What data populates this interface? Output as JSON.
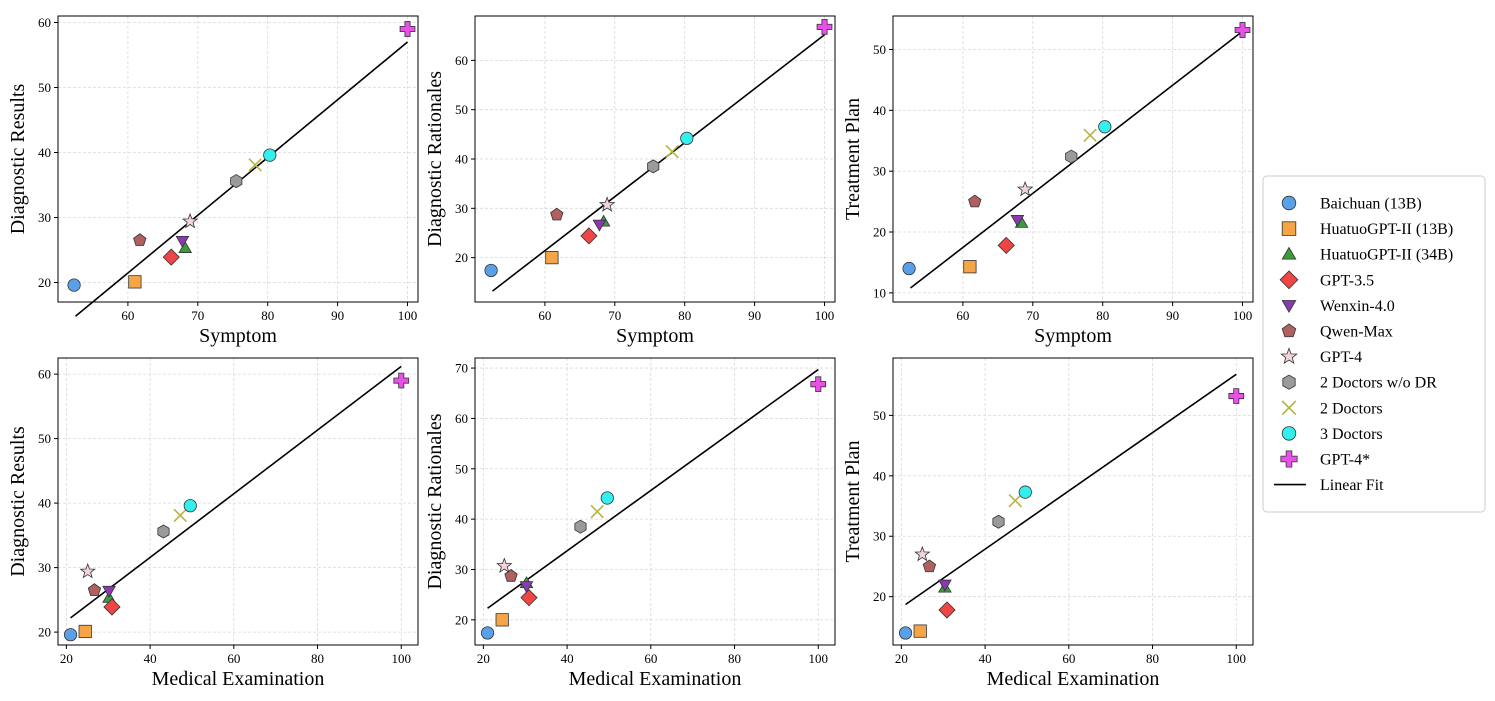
{
  "models": [
    {
      "name": "Baichuan (13B)",
      "marker": "circle",
      "color": "#5aa0e8"
    },
    {
      "name": "HuatuoGPT-II (13B)",
      "marker": "square",
      "color": "#f5a545"
    },
    {
      "name": "HuatuoGPT-II (34B)",
      "marker": "triangle",
      "color": "#3c9a3c"
    },
    {
      "name": "GPT-3.5",
      "marker": "diamond",
      "color": "#f04545"
    },
    {
      "name": "Wenxin-4.0",
      "marker": "triangle-down",
      "color": "#8a3ab0"
    },
    {
      "name": "Qwen-Max",
      "marker": "pentagon",
      "color": "#b06060"
    },
    {
      "name": "GPT-4",
      "marker": "star",
      "color": "#f3d4d9"
    },
    {
      "name": "2 Doctors w/o DR",
      "marker": "hexagon",
      "color": "#9a9a9a"
    },
    {
      "name": "2 Doctors",
      "marker": "x",
      "color": "#b9b344"
    },
    {
      "name": "3 Doctors",
      "marker": "circle",
      "color": "#33f0ee"
    },
    {
      "name": "GPT-4*",
      "marker": "plus",
      "color": "#e850e8"
    }
  ],
  "legend": {
    "fit_label": "Linear Fit"
  },
  "chart_data": [
    {
      "type": "scatter",
      "xlabel": "Symptom",
      "ylabel": "Diagnostic Results",
      "xlim": [
        50,
        101.5
      ],
      "ylim": [
        17,
        61
      ],
      "xticks": [
        60,
        70,
        80,
        90,
        100
      ],
      "yticks": [
        20,
        30,
        40,
        50,
        60
      ],
      "x": [
        52.3,
        61.0,
        68.2,
        66.2,
        67.8,
        61.7,
        68.9,
        75.5,
        78.2,
        80.3,
        100
      ],
      "y": [
        19.6,
        20.1,
        25.3,
        23.9,
        26.4,
        26.5,
        29.4,
        35.6,
        38.1,
        39.6,
        59.0
      ],
      "fit": [
        [
          52.5,
          14.8
        ],
        [
          100,
          57.0
        ]
      ]
    },
    {
      "type": "scatter",
      "xlabel": "Symptom",
      "ylabel": "Diagnostic Rationales",
      "xlim": [
        50,
        101.5
      ],
      "ylim": [
        11,
        69
      ],
      "xticks": [
        60,
        70,
        80,
        90,
        100
      ],
      "yticks": [
        20,
        30,
        40,
        50,
        60
      ],
      "x": [
        52.3,
        61.0,
        68.4,
        66.3,
        67.8,
        61.7,
        68.9,
        75.5,
        78.2,
        80.3,
        100
      ],
      "y": [
        17.4,
        20.0,
        27.3,
        24.4,
        26.7,
        28.7,
        30.7,
        38.5,
        41.5,
        44.2,
        66.8
      ],
      "fit": [
        [
          52.5,
          13.2
        ],
        [
          100,
          65.2
        ]
      ]
    },
    {
      "type": "scatter",
      "xlabel": "Symptom",
      "ylabel": "Treatment Plan",
      "xlim": [
        50,
        101.5
      ],
      "ylim": [
        8.5,
        55.5
      ],
      "xticks": [
        60,
        70,
        80,
        90,
        100
      ],
      "yticks": [
        10,
        20,
        30,
        40,
        50
      ],
      "x": [
        52.3,
        61.0,
        68.4,
        66.2,
        67.8,
        61.7,
        68.9,
        75.5,
        78.2,
        80.3,
        100
      ],
      "y": [
        14.0,
        14.3,
        21.5,
        17.8,
        22.0,
        25.0,
        27.0,
        32.4,
        35.9,
        37.3,
        53.2
      ],
      "fit": [
        [
          52.5,
          10.8
        ],
        [
          100,
          53.0
        ]
      ]
    },
    {
      "type": "scatter",
      "xlabel": "Medical Examination",
      "ylabel": "Diagnostic Results",
      "xlim": [
        18,
        104
      ],
      "ylim": [
        18,
        62.5
      ],
      "xticks": [
        20,
        40,
        60,
        80,
        100
      ],
      "yticks": [
        20,
        30,
        40,
        50,
        60
      ],
      "x": [
        21.0,
        24.5,
        30.2,
        30.9,
        30.2,
        26.7,
        25.1,
        43.2,
        47.2,
        49.6,
        100
      ],
      "y": [
        19.6,
        20.1,
        25.3,
        23.9,
        26.4,
        26.5,
        29.4,
        35.6,
        38.1,
        39.6,
        59.0
      ],
      "fit": [
        [
          21,
          22.2
        ],
        [
          100,
          61.2
        ]
      ]
    },
    {
      "type": "scatter",
      "xlabel": "Medical Examination",
      "ylabel": "Diagnostic Rationales",
      "xlim": [
        18,
        104
      ],
      "ylim": [
        15,
        72
      ],
      "xticks": [
        20,
        40,
        60,
        80,
        100
      ],
      "yticks": [
        20,
        30,
        40,
        50,
        60,
        70
      ],
      "x": [
        21.0,
        24.5,
        30.3,
        30.9,
        30.3,
        26.6,
        25.0,
        43.2,
        47.2,
        49.6,
        100
      ],
      "y": [
        17.4,
        20.0,
        27.3,
        24.4,
        26.7,
        28.7,
        30.7,
        38.5,
        41.5,
        44.2,
        66.8
      ],
      "fit": [
        [
          21,
          22.3
        ],
        [
          100,
          69.7
        ]
      ]
    },
    {
      "type": "scatter",
      "xlabel": "Medical Examination",
      "ylabel": "Treatment Plan",
      "xlim": [
        18,
        104
      ],
      "ylim": [
        12,
        59.5
      ],
      "xticks": [
        20,
        40,
        60,
        80,
        100
      ],
      "yticks": [
        20,
        30,
        40,
        50
      ],
      "x": [
        21.0,
        24.5,
        30.4,
        30.9,
        30.4,
        26.7,
        25.0,
        43.2,
        47.2,
        49.6,
        100
      ],
      "y": [
        14.0,
        14.3,
        21.5,
        17.8,
        22.0,
        25.0,
        27.0,
        32.4,
        35.9,
        37.3,
        53.2
      ],
      "fit": [
        [
          21,
          18.7
        ],
        [
          100,
          56.8
        ]
      ]
    }
  ]
}
